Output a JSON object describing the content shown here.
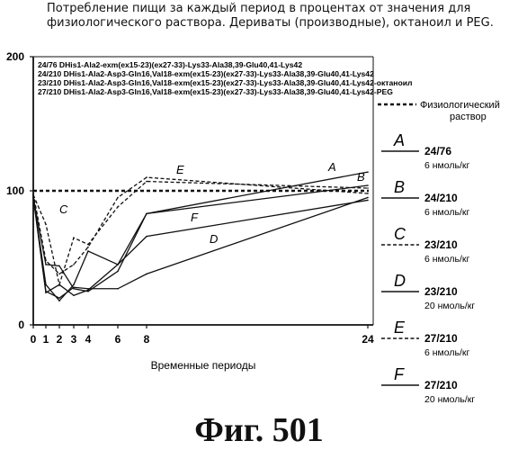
{
  "header": {
    "line1": "Потребление пищи за каждый период в процентах от значения для",
    "line2": "физиологического раствора. Дериваты (производные), октаноил и PEG."
  },
  "figure_label": "Фиг.  501",
  "chart_data": {
    "type": "line",
    "xlabel": "Временные периоды",
    "ylabel": "",
    "x_ticks": [
      "0",
      "1",
      "2",
      "3",
      "4",
      "6",
      "8",
      "24"
    ],
    "y_ticks": [
      "0",
      "100",
      "200"
    ],
    "ylim": [
      0,
      200
    ],
    "compounds": [
      "24/76 DHis1-Ala2-exm(ex15-23)(ex27-33)-Lys33-Ala38,39-Glu40,41-Lys42",
      "24/210 DHis1-Ala2-Asp3-Gln16,Val18-exm(ex15-23)(ex27-33)-Lys33-Ala38,39-Glu40,41-Lys42",
      "23/210 DHis1-Ala2-Asp3-Gln16,Val18-exm(ex15-23)(ex27-33)-Lys33-Ala38,39-Glu40,41-Lys42-октаноил",
      "27/210 DHis1-Ala2-Asp3-Gln16,Val18-exm(ex15-23)(ex27-33)-Lys33-Ala38,39-Glu40,41-Lys42-PEG"
    ],
    "reference": {
      "name": "Физиологический раствор",
      "value": 100
    },
    "series": [
      {
        "name": "A",
        "label": "24/76",
        "dose": "6 нмоль/кг",
        "style": "solid",
        "points": [
          [
            0,
            95
          ],
          [
            1,
            45
          ],
          [
            2,
            44
          ],
          [
            3,
            27
          ],
          [
            4,
            25
          ],
          [
            6,
            40
          ],
          [
            8,
            83
          ],
          [
            24,
            114
          ]
        ]
      },
      {
        "name": "B",
        "label": "24/210",
        "dose": "6 нмоль/кг",
        "style": "solid",
        "points": [
          [
            0,
            95
          ],
          [
            1,
            24
          ],
          [
            2,
            30
          ],
          [
            3,
            22
          ],
          [
            4,
            26
          ],
          [
            6,
            45
          ],
          [
            8,
            83
          ],
          [
            24,
            104
          ]
        ]
      },
      {
        "name": "C",
        "label": "23/210",
        "dose": "6 нмоль/кг",
        "style": "dashed",
        "points": [
          [
            0,
            97
          ],
          [
            1,
            75
          ],
          [
            2,
            30
          ],
          [
            3,
            65
          ],
          [
            4,
            60
          ],
          [
            6,
            88
          ],
          [
            8,
            107
          ],
          [
            24,
            102
          ]
        ]
      },
      {
        "name": "D",
        "label": "23/210",
        "dose": "20 нмоль/кг",
        "style": "solid",
        "points": [
          [
            0,
            96
          ],
          [
            1,
            25
          ],
          [
            2,
            20
          ],
          [
            3,
            28
          ],
          [
            4,
            27
          ],
          [
            6,
            27
          ],
          [
            8,
            38
          ],
          [
            24,
            95
          ]
        ]
      },
      {
        "name": "E",
        "label": "27/210",
        "dose": "6 нмоль/кг",
        "style": "dashed",
        "points": [
          [
            0,
            98
          ],
          [
            1,
            48
          ],
          [
            2,
            38
          ],
          [
            3,
            45
          ],
          [
            4,
            58
          ],
          [
            6,
            95
          ],
          [
            8,
            110
          ],
          [
            24,
            98
          ]
        ]
      },
      {
        "name": "F",
        "label": "27/210",
        "dose": "20 нмоль/кг",
        "style": "solid",
        "points": [
          [
            0,
            95
          ],
          [
            1,
            30
          ],
          [
            2,
            18
          ],
          [
            3,
            30
          ],
          [
            4,
            55
          ],
          [
            6,
            45
          ],
          [
            8,
            66
          ],
          [
            24,
            93
          ]
        ]
      }
    ]
  }
}
